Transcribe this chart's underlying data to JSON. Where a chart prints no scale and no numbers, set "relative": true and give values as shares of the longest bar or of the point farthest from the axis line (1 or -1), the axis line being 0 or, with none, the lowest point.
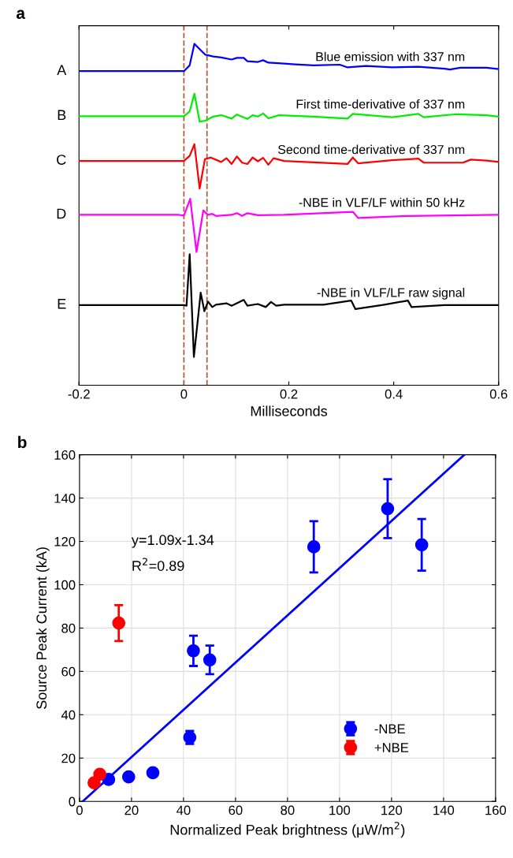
{
  "chart_data": [
    {
      "type": "line",
      "title": "a",
      "xlabel": "Milliseconds",
      "relative": true,
      "xlim": [
        -0.2,
        0.6
      ],
      "xticks": [
        -0.2,
        0,
        0.2,
        0.4,
        0.6
      ],
      "grid": false,
      "legend": false,
      "line_style": "solid",
      "series": [
        {
          "name": "A",
          "color": "#0000ff",
          "x": [
            -0.2,
            0,
            0.011,
            0.02,
            0.031,
            0.041,
            0.056,
            0.071,
            0.091,
            0.101,
            0.114,
            0.121,
            0.141,
            0.151,
            0.161,
            0.191,
            0.212,
            0.247,
            0.297,
            0.312,
            0.347,
            0.397,
            0.447,
            0.497,
            0.507,
            0.527,
            0.577,
            0.6
          ],
          "values": [
            0.92,
            0.92,
            0.937,
            1.0,
            0.983,
            0.968,
            0.963,
            0.96,
            0.954,
            0.959,
            0.959,
            0.949,
            0.947,
            0.952,
            0.945,
            0.942,
            0.94,
            0.937,
            0.939,
            0.931,
            0.935,
            0.931,
            0.933,
            0.927,
            0.925,
            0.93,
            0.93,
            0.926
          ]
        },
        {
          "name": "B",
          "color": "#00ee00",
          "x": [
            -0.2,
            0,
            0.011,
            0.02,
            0.03,
            0.041,
            0.056,
            0.071,
            0.091,
            0.101,
            0.121,
            0.131,
            0.141,
            0.151,
            0.161,
            0.181,
            0.247,
            0.312,
            0.322,
            0.397,
            0.447,
            0.457,
            0.52,
            0.577,
            0.6
          ],
          "values": [
            0.788,
            0.788,
            0.802,
            0.854,
            0.772,
            0.775,
            0.787,
            0.791,
            0.781,
            0.793,
            0.78,
            0.791,
            0.787,
            0.796,
            0.782,
            0.791,
            0.787,
            0.781,
            0.795,
            0.785,
            0.795,
            0.785,
            0.794,
            0.791,
            0.787
          ]
        },
        {
          "name": "C",
          "color": "#ff0000",
          "x": [
            -0.2,
            0,
            0.011,
            0.02,
            0.03,
            0.04,
            0.051,
            0.071,
            0.081,
            0.091,
            0.101,
            0.111,
            0.121,
            0.131,
            0.141,
            0.151,
            0.161,
            0.171,
            0.191,
            0.312,
            0.322,
            0.332,
            0.397,
            0.447,
            0.457,
            0.532,
            0.547,
            0.577,
            0.6
          ],
          "values": [
            0.657,
            0.657,
            0.672,
            0.706,
            0.576,
            0.662,
            0.667,
            0.654,
            0.665,
            0.648,
            0.67,
            0.652,
            0.648,
            0.667,
            0.656,
            0.666,
            0.646,
            0.665,
            0.657,
            0.648,
            0.667,
            0.65,
            0.659,
            0.664,
            0.652,
            0.652,
            0.661,
            0.658,
            0.654
          ]
        },
        {
          "name": "D",
          "color": "#ff00ff",
          "x": [
            -0.2,
            -0.009,
            0,
            0.012,
            0.024,
            0.037,
            0.046,
            0.054,
            0.061,
            0.091,
            0.101,
            0.111,
            0.121,
            0.141,
            0.191,
            0.322,
            0.332,
            0.427,
            0.6
          ],
          "values": [
            0.499,
            0.499,
            0.497,
            0.546,
            0.39,
            0.512,
            0.499,
            0.502,
            0.496,
            0.499,
            0.504,
            0.496,
            0.504,
            0.498,
            0.499,
            0.508,
            0.49,
            0.496,
            0.499
          ]
        },
        {
          "name": "E",
          "color": "#000000",
          "x": [
            -0.2,
            0,
            0.005,
            0.011,
            0.019,
            0.032,
            0.039,
            0.046,
            0.054,
            0.061,
            0.081,
            0.091,
            0.114,
            0.121,
            0.141,
            0.156,
            0.166,
            0.176,
            0.191,
            0.266,
            0.319,
            0.327,
            0.382,
            0.427,
            0.434,
            0.497,
            0.6
          ],
          "values": [
            0.235,
            0.235,
            0.233,
            0.384,
            0.083,
            0.271,
            0.217,
            0.245,
            0.229,
            0.236,
            0.24,
            0.233,
            0.25,
            0.233,
            0.238,
            0.229,
            0.244,
            0.233,
            0.236,
            0.236,
            0.248,
            0.223,
            0.236,
            0.248,
            0.229,
            0.235,
            0.235
          ]
        }
      ],
      "ref_lines": [
        {
          "axis": "x",
          "value": 0,
          "color": "#b0603a",
          "line_style": "dashed"
        },
        {
          "axis": "x",
          "value": 0.044,
          "color": "#b0603a",
          "line_style": "dashed"
        }
      ],
      "annotations": [
        "Blue emission with 337 nm",
        "First time-derivative of 337 nm",
        "Second time-derivative of 337 nm",
        "-NBE in VLF/LF within 50 kHz",
        "-NBE in VLF/LF raw signal"
      ]
    },
    {
      "type": "scatter",
      "title": "b",
      "xlabel": "Normalized Peak brightness (μW/m$^{2}$)",
      "ylabel": "Source Peak Current (kA)",
      "xlim": [
        0,
        160
      ],
      "ylim": [
        0,
        160
      ],
      "xticks": [
        0,
        20,
        40,
        60,
        80,
        100,
        120,
        140,
        160
      ],
      "yticks": [
        0,
        20,
        40,
        60,
        80,
        100,
        120,
        140,
        160
      ],
      "grid": true,
      "legend": "bottom right",
      "marker": "circle",
      "series": [
        {
          "name": "-NBE",
          "color": "#0000ff",
          "x": [
            11.2,
            18.9,
            28.2,
            42.4,
            43.8,
            50.1,
            90.1,
            118.5,
            131.6
          ],
          "values": [
            10.1,
            11.3,
            13.2,
            29.5,
            69.5,
            65.3,
            117.5,
            135.1,
            118.4
          ],
          "errors": [
            null,
            null,
            null,
            3,
            7,
            6.6,
            11.8,
            13.6,
            11.9
          ]
        },
        {
          "name": "+NBE",
          "color": "#ff0000",
          "x": [
            5.6,
            7.8,
            15.1
          ],
          "values": [
            8.6,
            12.5,
            82.3
          ],
          "errors": [
            null,
            null,
            8.3
          ]
        },
        {
          "type": "line",
          "marker": "none",
          "color": "#0000ff",
          "x": [
            1.23,
            148.0
          ],
          "values": [
            0,
            160
          ]
        }
      ],
      "annotations": [
        "y=1.09x-1.34",
        "R$^{2}$=0.89"
      ]
    }
  ]
}
